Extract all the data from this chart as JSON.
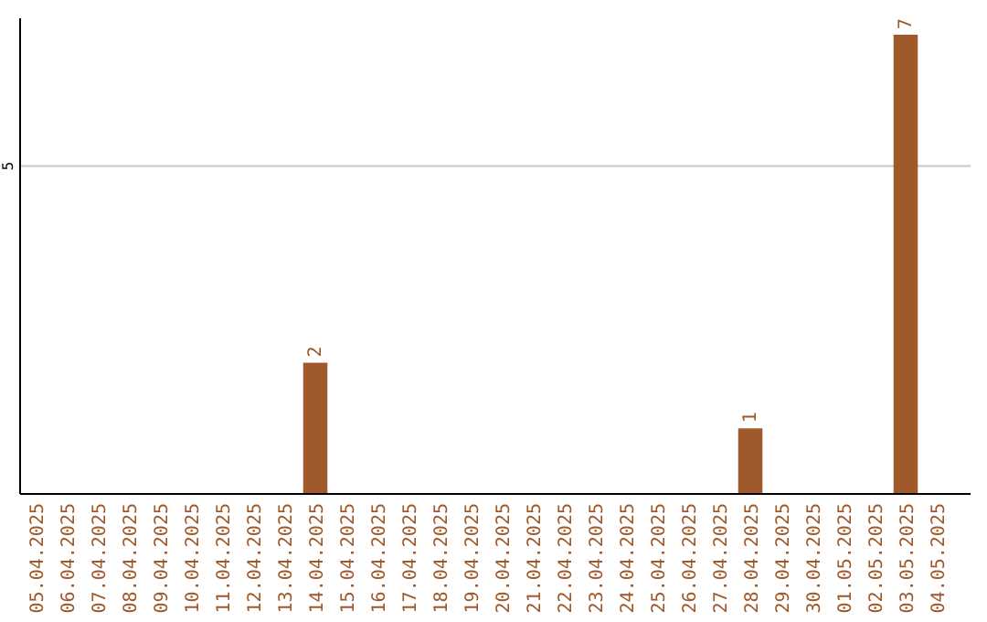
{
  "chart_data": {
    "type": "bar",
    "categories": [
      "05.04.2025",
      "06.04.2025",
      "07.04.2025",
      "08.04.2025",
      "09.04.2025",
      "10.04.2025",
      "11.04.2025",
      "12.04.2025",
      "13.04.2025",
      "14.04.2025",
      "15.04.2025",
      "16.04.2025",
      "17.04.2025",
      "18.04.2025",
      "19.04.2025",
      "20.04.2025",
      "21.04.2025",
      "22.04.2025",
      "23.04.2025",
      "24.04.2025",
      "25.04.2025",
      "26.04.2025",
      "27.04.2025",
      "28.04.2025",
      "29.04.2025",
      "30.04.2025",
      "01.05.2025",
      "02.05.2025",
      "03.05.2025",
      "04.05.2025"
    ],
    "values": [
      0,
      0,
      0,
      0,
      0,
      0,
      0,
      0,
      0,
      2,
      0,
      0,
      0,
      0,
      0,
      0,
      0,
      0,
      0,
      0,
      0,
      0,
      0,
      1,
      0,
      0,
      0,
      0,
      7,
      0
    ],
    "value_labels": [
      null,
      null,
      null,
      null,
      null,
      null,
      null,
      null,
      null,
      "2",
      null,
      null,
      null,
      null,
      null,
      null,
      null,
      null,
      null,
      null,
      null,
      null,
      null,
      "1",
      null,
      null,
      null,
      null,
      "7",
      null
    ],
    "color": "#a0592a",
    "ylim": [
      0,
      7.25
    ],
    "yticks": [
      5
    ],
    "grid": "y"
  }
}
